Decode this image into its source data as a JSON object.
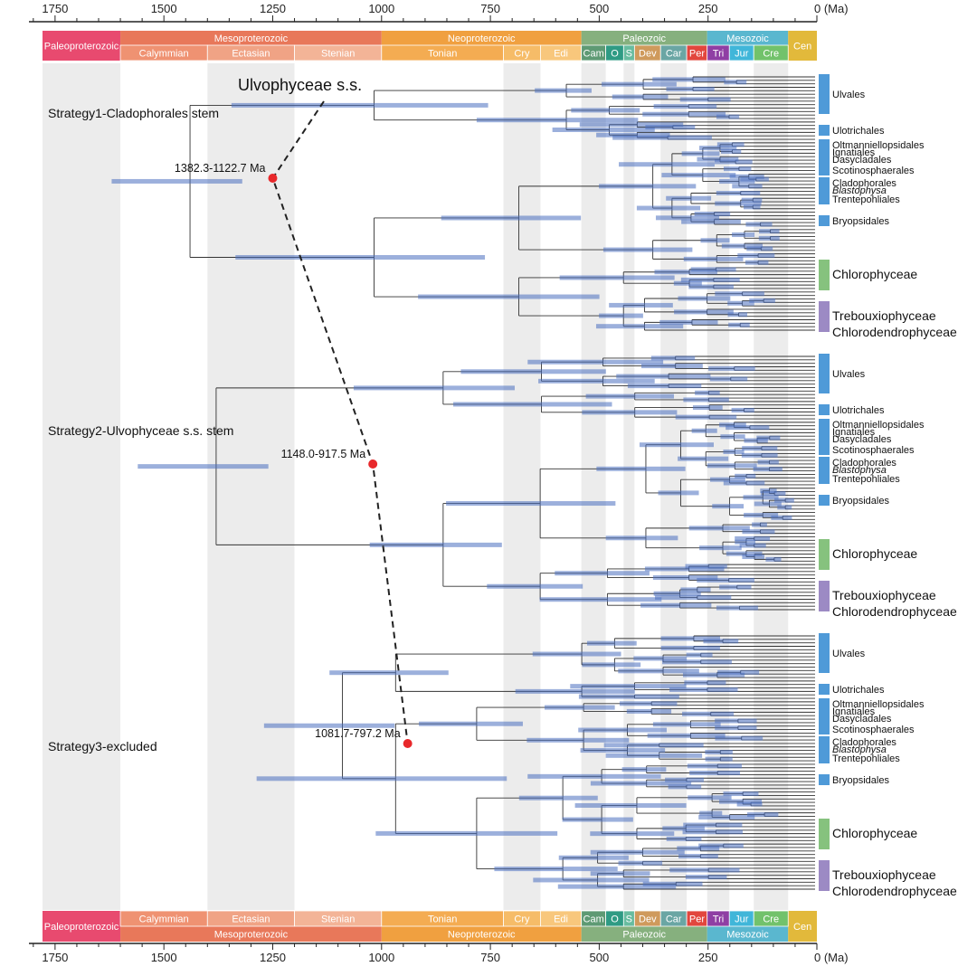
{
  "axis": {
    "unit_label": "0 (Ma)",
    "max_age": 1810,
    "ticks": [
      {
        "age": 1750,
        "label": "1750"
      },
      {
        "age": 1500,
        "label": "1500"
      },
      {
        "age": 1250,
        "label": "1250"
      },
      {
        "age": 1000,
        "label": "1000"
      },
      {
        "age": 750,
        "label": "750"
      },
      {
        "age": 500,
        "label": "500"
      },
      {
        "age": 250,
        "label": "250"
      }
    ]
  },
  "eras": [
    {
      "label": "Paleoproterozoic",
      "start": 1800,
      "end": 1600,
      "color": "#e84a6f"
    },
    {
      "label": "Mesoproterozoic",
      "start": 1600,
      "end": 1000,
      "color": "#e8785a"
    },
    {
      "label": "Neoproterozoic",
      "start": 1000,
      "end": 541,
      "color": "#f0a040"
    },
    {
      "label": "Paleozoic",
      "start": 541,
      "end": 252,
      "color": "#86b07e"
    },
    {
      "label": "Mesozoic",
      "start": 252,
      "end": 66,
      "color": "#5ab7cf"
    },
    {
      "label": "Cen",
      "start": 66,
      "end": 0,
      "color": "#e2b93b"
    }
  ],
  "periods": [
    {
      "label": "Calymmian",
      "start": 1600,
      "end": 1400,
      "color": "#ef9272"
    },
    {
      "label": "Ectasian",
      "start": 1400,
      "end": 1200,
      "color": "#f0a385"
    },
    {
      "label": "Stenian",
      "start": 1200,
      "end": 1000,
      "color": "#f3b497"
    },
    {
      "label": "Tonian",
      "start": 1000,
      "end": 720,
      "color": "#f4ac52"
    },
    {
      "label": "Cry",
      "start": 720,
      "end": 635,
      "color": "#f6bc68"
    },
    {
      "label": "Edi",
      "start": 635,
      "end": 541,
      "color": "#f8c77c"
    },
    {
      "label": "Cam",
      "start": 541,
      "end": 485,
      "color": "#5e9a74"
    },
    {
      "label": "O",
      "start": 485,
      "end": 444,
      "color": "#2f9b84"
    },
    {
      "label": "S",
      "start": 444,
      "end": 419,
      "color": "#68bca0"
    },
    {
      "label": "Dev",
      "start": 419,
      "end": 359,
      "color": "#cf9a5c"
    },
    {
      "label": "Car",
      "start": 359,
      "end": 299,
      "color": "#6aa6a4"
    },
    {
      "label": "Per",
      "start": 299,
      "end": 252,
      "color": "#e2463d"
    },
    {
      "label": "Tri",
      "start": 252,
      "end": 201,
      "color": "#8f3fa4"
    },
    {
      "label": "Jur",
      "start": 201,
      "end": 145,
      "color": "#40b6d9"
    },
    {
      "label": "Cre",
      "start": 145,
      "end": 66,
      "color": "#72c26b"
    }
  ],
  "strategies": [
    {
      "title": "Strategy1-Cladophorales stem",
      "node_range": "1382.3-1122.7 Ma",
      "node_age": 1250
    },
    {
      "title": "Strategy2-Ulvophyceae s.s. stem",
      "node_range": "1148.0-917.5 Ma",
      "node_age": 1020
    },
    {
      "title": "Strategy3-excluded",
      "node_range": "1081.7-797.2 Ma",
      "node_age": 940
    }
  ],
  "annotation": "Ulvophyceae s.s.",
  "clades": [
    {
      "label": "Ulvales",
      "italic": false,
      "color": "#4f9ad8",
      "pos": 0.12
    },
    {
      "label": "Ulotrichales",
      "italic": false,
      "color": "#4f9ad8",
      "pos": 0.32
    },
    {
      "label": "Oltmanniellopsidales",
      "italic": false,
      "color": "#4f9ad8",
      "pos": 0.4
    },
    {
      "label": "Ignatiales",
      "italic": false,
      "color": "#4f9ad8",
      "pos": 0.44
    },
    {
      "label": "Dasycladales",
      "italic": false,
      "color": "#4f9ad8",
      "pos": 0.48
    },
    {
      "label": "Scotinosphaerales",
      "italic": false,
      "color": "#4f9ad8",
      "pos": 0.54
    },
    {
      "label": "Cladophorales",
      "italic": false,
      "color": "#4f9ad8",
      "pos": 0.61
    },
    {
      "label": "Blastophysa",
      "italic": true,
      "color": "#4f9ad8",
      "pos": 0.65
    },
    {
      "label": "Trentepohliales",
      "italic": false,
      "color": "#4f9ad8",
      "pos": 0.7
    },
    {
      "label": "Bryopsidales",
      "italic": false,
      "color": "#4f9ad8",
      "pos": 0.82
    },
    {
      "label": "Chlorophyceae",
      "italic": false,
      "color": "#86c27e",
      "pos": 1.12
    },
    {
      "label": "Trebouxiophyceae",
      "italic": false,
      "color": "#9c8ac4",
      "pos": 1.35
    },
    {
      "label": "Chlorodendrophyceae",
      "italic": false,
      "color": "#9c8ac4",
      "pos": 1.44
    }
  ]
}
